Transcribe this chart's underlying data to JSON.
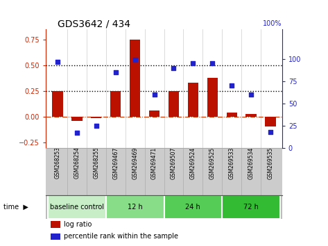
{
  "title": "GDS3642 / 434",
  "samples": [
    "GSM268253",
    "GSM268254",
    "GSM268255",
    "GSM269467",
    "GSM269469",
    "GSM269471",
    "GSM269507",
    "GSM269524",
    "GSM269525",
    "GSM269533",
    "GSM269534",
    "GSM269535"
  ],
  "log_ratio": [
    0.25,
    -0.04,
    -0.01,
    0.25,
    0.75,
    0.06,
    0.25,
    0.33,
    0.38,
    0.04,
    0.03,
    -0.09
  ],
  "percentile_rank": [
    97,
    17,
    25,
    85,
    99,
    60,
    90,
    95,
    95,
    70,
    60,
    18
  ],
  "bar_color": "#bb1100",
  "dot_color": "#2222cc",
  "zero_line_color": "#cc3300",
  "hline_color": "black",
  "hline_values": [
    0.25,
    0.5
  ],
  "ylim_left": [
    -0.3,
    0.85
  ],
  "ylim_right": [
    0,
    133
  ],
  "yticks_left": [
    -0.25,
    0,
    0.25,
    0.5,
    0.75
  ],
  "yticks_right": [
    0,
    25,
    50,
    75,
    100
  ],
  "groups": [
    {
      "label": "baseline control",
      "start": 0,
      "end": 3,
      "color": "#c8eec8"
    },
    {
      "label": "12 h",
      "start": 3,
      "end": 6,
      "color": "#88dd88"
    },
    {
      "label": "24 h",
      "start": 6,
      "end": 9,
      "color": "#55cc55"
    },
    {
      "label": "72 h",
      "start": 9,
      "end": 12,
      "color": "#33bb33"
    }
  ],
  "legend_bar_label": "log ratio",
  "legend_dot_label": "percentile rank within the sample",
  "time_label": "time",
  "background_color": "#ffffff",
  "plot_bg_color": "#ffffff",
  "sample_band_color": "#cccccc",
  "tick_label_color_left": "#cc2200",
  "tick_label_color_right": "#2222cc",
  "right_axis_top_label": "100%"
}
